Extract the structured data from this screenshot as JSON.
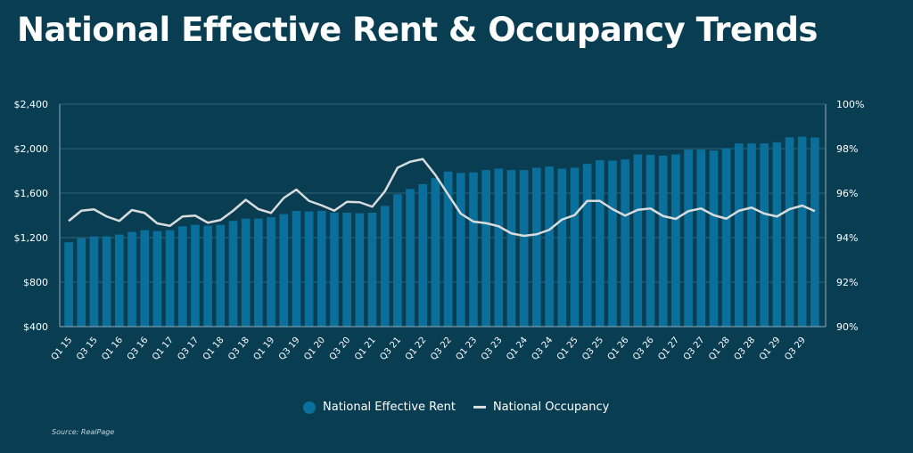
{
  "title": "National Effective Rent & Occupancy Trends",
  "source": "Source: RealPage",
  "colors": {
    "background": "#083d52",
    "rent_bar": "#0a6f9a",
    "occupancy_line": "#d9dcdc",
    "grid": "#2f6277"
  },
  "legend": {
    "rent": "National Effective Rent",
    "occupancy": "National Occupancy",
    "placement": "bottom"
  },
  "chart_data": {
    "type": "bar+line",
    "title": "National Effective Rent & Occupancy Trends",
    "grid": true,
    "x_tick_labels": [
      "Q1 15",
      "Q3 15",
      "Q1 16",
      "Q3 16",
      "Q1 17",
      "Q3 17",
      "Q1 18",
      "Q3 18",
      "Q1 19",
      "Q3 19",
      "Q1 20",
      "Q3 20",
      "Q1 21",
      "Q3 21",
      "Q1 22",
      "Q3 22",
      "Q1 23",
      "Q3 23",
      "Q1 24",
      "Q3 24",
      "Q1 25",
      "Q3 25",
      "Q1 26",
      "Q3 26",
      "Q1 27",
      "Q3 27",
      "Q1 28",
      "Q3 28",
      "Q1 29",
      "Q3 29"
    ],
    "y_left": {
      "range": [
        400,
        2400
      ],
      "ticks": [
        "$400",
        "$800",
        "$1,200",
        "$1,600",
        "$2,000",
        "$2,400"
      ],
      "tick_values": [
        400,
        800,
        1200,
        1600,
        2000,
        2400
      ]
    },
    "y_right": {
      "range": [
        90,
        100
      ],
      "ticks": [
        "90%",
        "92%",
        "94%",
        "96%",
        "98%",
        "100%"
      ],
      "tick_values": [
        90,
        92,
        94,
        96,
        98,
        100
      ]
    },
    "series": [
      {
        "name": "National Effective Rent",
        "type": "bar",
        "axis": "left",
        "values": [
          1158,
          1195,
          1211,
          1211,
          1227,
          1251,
          1267,
          1259,
          1267,
          1302,
          1315,
          1307,
          1315,
          1350,
          1371,
          1371,
          1384,
          1411,
          1440,
          1435,
          1440,
          1424,
          1424,
          1419,
          1424,
          1485,
          1589,
          1637,
          1680,
          1735,
          1794,
          1781,
          1786,
          1807,
          1820,
          1807,
          1807,
          1828,
          1839,
          1820,
          1828,
          1863,
          1895,
          1892,
          1903,
          1948,
          1945,
          1937,
          1948,
          1991,
          1991,
          1983,
          2004,
          2047,
          2047,
          2047,
          2057,
          2102,
          2108,
          2100
        ]
      },
      {
        "name": "National Occupancy",
        "type": "line",
        "axis": "right",
        "values": [
          94.75,
          95.21,
          95.27,
          94.95,
          94.75,
          95.24,
          95.11,
          94.64,
          94.53,
          94.95,
          94.99,
          94.67,
          94.79,
          95.21,
          95.7,
          95.28,
          95.11,
          95.78,
          96.16,
          95.65,
          95.45,
          95.21,
          95.61,
          95.59,
          95.39,
          96.08,
          97.14,
          97.41,
          97.53,
          96.81,
          95.94,
          95.08,
          94.72,
          94.65,
          94.51,
          94.19,
          94.08,
          94.15,
          94.35,
          94.81,
          95.01,
          95.65,
          95.65,
          95.28,
          94.99,
          95.25,
          95.31,
          94.97,
          94.84,
          95.19,
          95.31,
          95.01,
          94.85,
          95.21,
          95.35,
          95.08,
          94.95,
          95.28,
          95.44,
          95.19
        ]
      }
    ]
  }
}
